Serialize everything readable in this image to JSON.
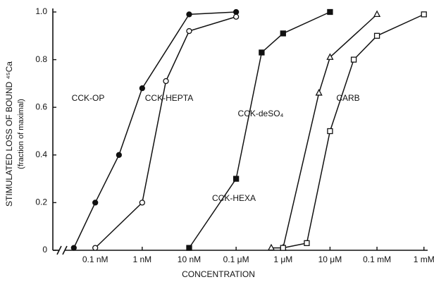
{
  "chart_data": {
    "type": "line",
    "y_label": "STIMULATED LOSS OF BOUND ⁴⁵Ca",
    "y_sublabel": "(fraction of maximal)",
    "x_label": "CONCENTRATION",
    "x_scale": "log",
    "xlim": [
      1.25e-11,
      0.0012
    ],
    "xticks": [
      {
        "value": 1e-10,
        "label": "0.1 nM"
      },
      {
        "value": 1e-09,
        "label": "1 nM"
      },
      {
        "value": 1e-08,
        "label": "10 nM"
      },
      {
        "value": 1e-07,
        "label": "0.1 μM"
      },
      {
        "value": 1e-06,
        "label": "1 μM"
      },
      {
        "value": 1e-05,
        "label": "10 μM"
      },
      {
        "value": 0.0001,
        "label": "0.1 mM"
      },
      {
        "value": 0.001,
        "label": "1 mM"
      }
    ],
    "ylim": [
      0,
      1.0
    ],
    "yticks": [
      0,
      0.2,
      0.4,
      0.6,
      0.8,
      {
        "value": 1,
        "label": "1.0"
      }
    ],
    "series": [
      {
        "name": "CCK-OP",
        "color": "#111111",
        "marker": "filled-circle",
        "x": [
          3.5e-11,
          1e-10,
          3.2e-10,
          1e-09,
          1e-08,
          1e-07
        ],
        "values": [
          0.01,
          0.2,
          0.4,
          0.68,
          0.99,
          1.0
        ]
      },
      {
        "name": "CCK-HEPTA",
        "color": "#111111",
        "marker": "open-circle",
        "x": [
          1e-10,
          1e-09,
          3.2e-09,
          1e-08,
          1e-07
        ],
        "values": [
          0.01,
          0.2,
          0.71,
          0.92,
          0.98
        ]
      },
      {
        "name": "CCK-HEXA",
        "color": "#111111",
        "marker": "filled-square",
        "x": [
          1e-08,
          1e-07,
          3.5e-07,
          1e-06,
          1e-05
        ],
        "values": [
          0.01,
          0.3,
          0.83,
          0.91,
          1.0
        ]
      },
      {
        "name": "CCK-deSO₄",
        "color": "#111111",
        "marker": "open-triangle",
        "x": [
          5.6e-07,
          1e-06,
          5.8e-06,
          1e-05,
          0.0001
        ],
        "values": [
          0.01,
          0.01,
          0.66,
          0.81,
          0.99
        ]
      },
      {
        "name": "CARB",
        "color": "#111111",
        "marker": "open-square",
        "x": [
          1e-06,
          3.2e-06,
          1e-05,
          3.2e-05,
          0.0001,
          0.001
        ],
        "values": [
          0.01,
          0.03,
          0.5,
          0.8,
          0.9,
          0.99
        ]
      }
    ]
  }
}
